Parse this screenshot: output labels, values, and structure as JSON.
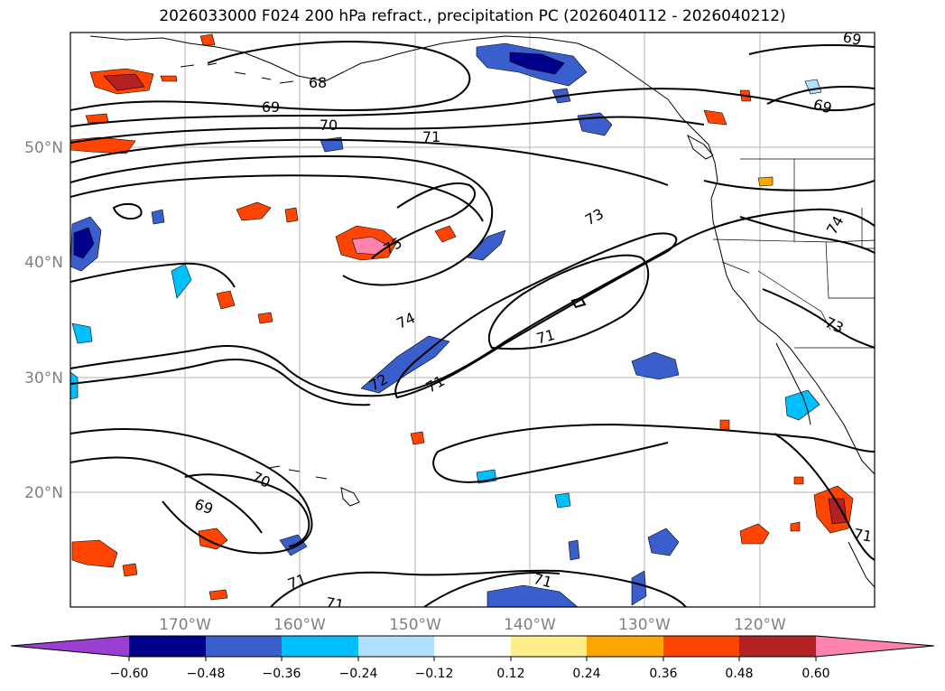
{
  "title": "2026033000 F024 200 hPa refract., precipitation PC (2026040112 - 2026040212)",
  "lat_labels": [
    "50°N",
    "40°N",
    "30°N",
    "20°N"
  ],
  "lon_labels": [
    "170°W",
    "160°W",
    "150°W",
    "140°W",
    "130°W",
    "120°W"
  ],
  "contour_labels": [
    "69",
    "68",
    "69",
    "70",
    "71",
    "73",
    "74",
    "75",
    "74",
    "71",
    "72",
    "71",
    "70",
    "69",
    "71",
    "71",
    "71",
    "73",
    "69",
    "71"
  ],
  "colorbar": {
    "ticks": [
      "−0.60",
      "−0.48",
      "−0.36",
      "−0.24",
      "−0.12",
      "0.12",
      "0.24",
      "0.36",
      "0.48",
      "0.60"
    ],
    "colors": [
      "#9a3fd1",
      "#00008b",
      "#3a5fcd",
      "#00bfff",
      "#b0e2ff",
      "#ffffff",
      "#ffec8b",
      "#ffa500",
      "#ff4500",
      "#b22222",
      "#ff82ab"
    ]
  }
}
